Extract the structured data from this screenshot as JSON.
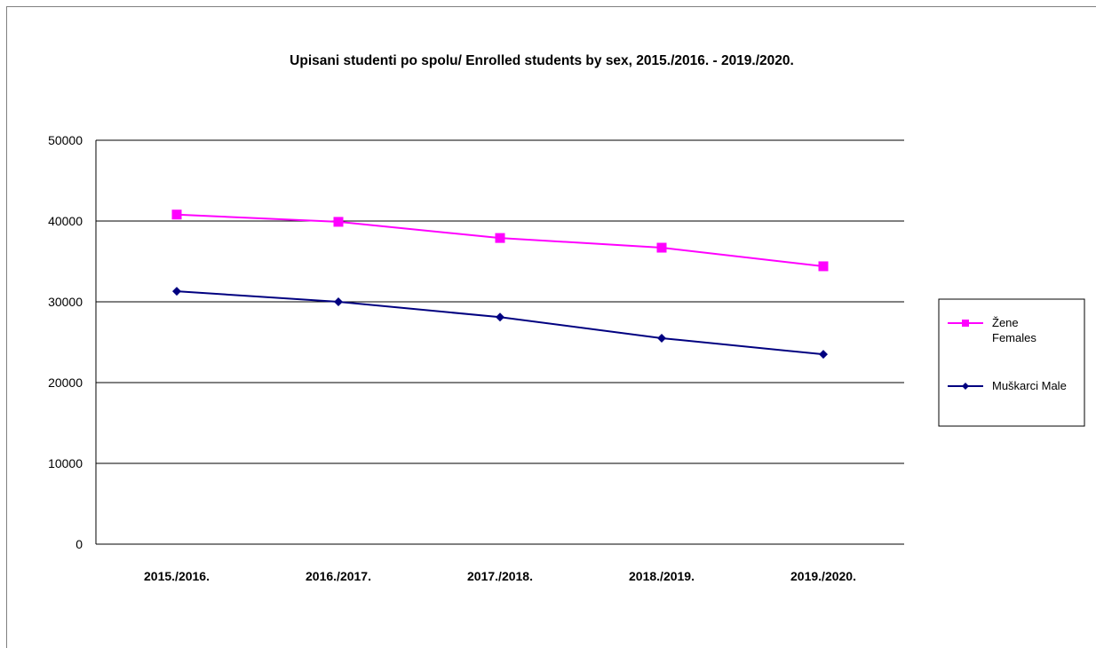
{
  "chart_data": {
    "type": "line",
    "title": "Upisani studenti po spolu/ Enrolled students by sex, 2015./2016. - 2019./2020.",
    "xlabel": "",
    "ylabel": "",
    "categories": [
      "2015./2016.",
      "2016./2017.",
      "2017./2018.",
      "2018./2019.",
      "2019./2020."
    ],
    "ylim": [
      0,
      50000
    ],
    "yticks": [
      0,
      10000,
      20000,
      30000,
      40000,
      50000
    ],
    "grid": true,
    "legend_position": "right",
    "series": [
      {
        "name_lines": [
          "Žene",
          "Females"
        ],
        "color": "#ff00ff",
        "marker": "square",
        "values": [
          40800,
          39900,
          37900,
          36700,
          34400
        ]
      },
      {
        "name_lines": [
          "Muškarci Male"
        ],
        "color": "#000080",
        "marker": "diamond",
        "values": [
          31300,
          30000,
          28100,
          25500,
          23500
        ]
      }
    ]
  }
}
